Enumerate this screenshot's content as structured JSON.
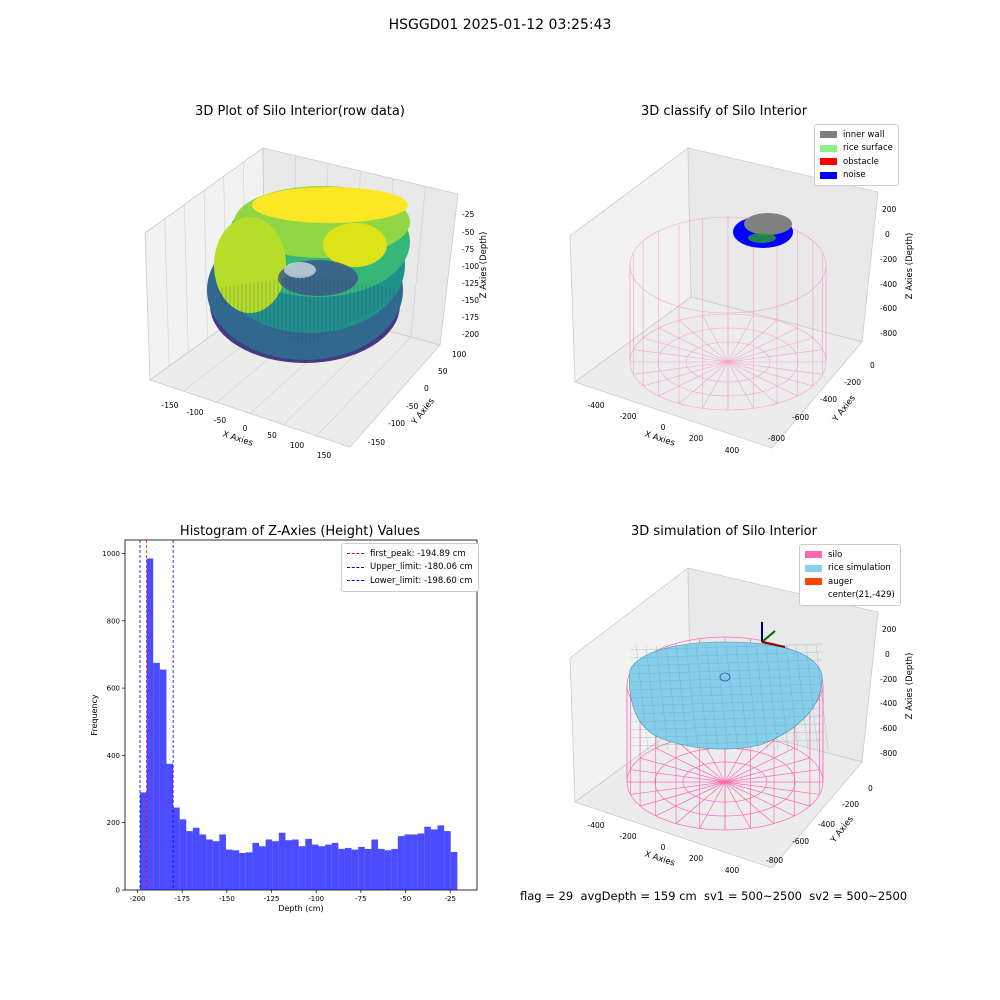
{
  "suptitle": "HSGGD01 2025-01-12 03:25:43",
  "plots": {
    "raw": {
      "title": "3D Plot of Silo Interior(row data)",
      "xlabel": "X Axies",
      "ylabel": "Y Axies",
      "zlabel": "Z Axies (Depth)",
      "xticks": [
        "-150",
        "-100",
        "-50",
        "0",
        "50",
        "100",
        "150"
      ],
      "yticks": [
        "100",
        "50",
        "0",
        "-50",
        "-100",
        "-150"
      ],
      "zticks": [
        "-25",
        "-50",
        "-75",
        "-100",
        "-125",
        "-150",
        "-175",
        "-200"
      ]
    },
    "classify": {
      "title": "3D classify of Silo Interior",
      "xlabel": "X Axies",
      "ylabel": "Y Axies",
      "zlabel": "Z Axies (Depth)",
      "xticks": [
        "-400",
        "-200",
        "0",
        "200",
        "400"
      ],
      "yticks": [
        "0",
        "-200",
        "-400",
        "-600",
        "-800"
      ],
      "zticks": [
        "200",
        "0",
        "-200",
        "-400",
        "-600",
        "-800"
      ],
      "legend": [
        {
          "label": "inner wall",
          "color": "#808080"
        },
        {
          "label": "rice surface",
          "color": "#90ee90"
        },
        {
          "label": "obstacle",
          "color": "#ff0000"
        },
        {
          "label": "noise",
          "color": "#0000ff"
        }
      ]
    },
    "simulation": {
      "title": "3D simulation of Silo Interior",
      "xlabel": "X Axies",
      "ylabel": "Y Axies",
      "zlabel": "Z Axies (Depth)",
      "xticks": [
        "-400",
        "-200",
        "0",
        "200",
        "400"
      ],
      "yticks": [
        "0",
        "-200",
        "-400",
        "-600",
        "-800"
      ],
      "zticks": [
        "200",
        "0",
        "-200",
        "-400",
        "-600",
        "-800"
      ],
      "legend": [
        {
          "label": "silo",
          "color": "#ff69b4"
        },
        {
          "label": "rice simulation",
          "color": "#87ceeb"
        },
        {
          "label": "auger",
          "color": "#ff4500"
        },
        {
          "label": "center(21,-429)",
          "color": ""
        }
      ]
    }
  },
  "status_line": "flag = 29  avgDepth = 159 cm  sv1 = 500~2500  sv2 = 500~2500",
  "chart_data": {
    "type": "bar",
    "title": "Histogram of Z-Axies (Height) Values",
    "xlabel": "Depth (cm)",
    "ylabel": "Frequency",
    "xlim": [
      -207,
      -10
    ],
    "ylim": [
      0,
      1040
    ],
    "xticks": [
      -200,
      -175,
      -150,
      -125,
      -100,
      -75,
      -50,
      -25
    ],
    "yticks": [
      0,
      200,
      400,
      600,
      800,
      1000
    ],
    "bar_color": "#0000ff",
    "bin_start": -198.6,
    "bin_width": 3.7,
    "values": [
      290,
      985,
      675,
      655,
      375,
      245,
      210,
      175,
      185,
      165,
      150,
      145,
      165,
      120,
      118,
      110,
      112,
      140,
      130,
      150,
      145,
      170,
      148,
      150,
      130,
      152,
      135,
      130,
      135,
      140,
      122,
      125,
      120,
      128,
      122,
      150,
      122,
      118,
      122,
      160,
      165,
      165,
      168,
      188,
      180,
      192,
      175,
      113
    ],
    "vlines": [
      {
        "label": "first_peak: -194.89 cm",
        "x": -194.89,
        "color": "#ff0000"
      },
      {
        "label": "Upper_limit: -180.06 cm",
        "x": -180.06,
        "color": "#0000ff"
      },
      {
        "label": "Lower_limit: -198.60 cm",
        "x": -198.6,
        "color": "#0000ff"
      }
    ],
    "legend_position": "upper right"
  }
}
